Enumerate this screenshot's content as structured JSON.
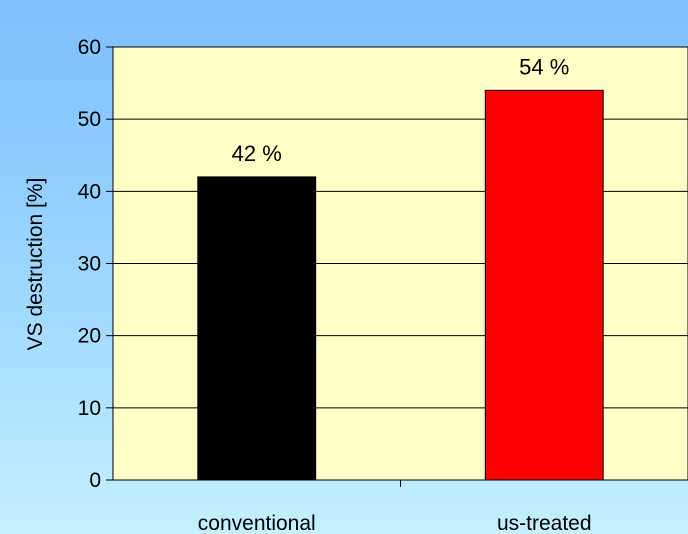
{
  "chart_data": {
    "type": "bar",
    "categories": [
      "conventional",
      "us-treated"
    ],
    "values": [
      42,
      54
    ],
    "data_labels": [
      "42 %",
      "54 %"
    ],
    "bar_colors": [
      "#000000",
      "#ff0000"
    ],
    "ylabel": "VS destruction [%]",
    "ylim": [
      0,
      60
    ],
    "yticks": [
      0,
      10,
      20,
      30,
      40,
      50,
      60
    ],
    "yticks_text": [
      "0",
      "10",
      "20",
      "30",
      "40",
      "50",
      "60"
    ],
    "grid": true,
    "plot_background": "#ffffc8",
    "legend": "none"
  }
}
